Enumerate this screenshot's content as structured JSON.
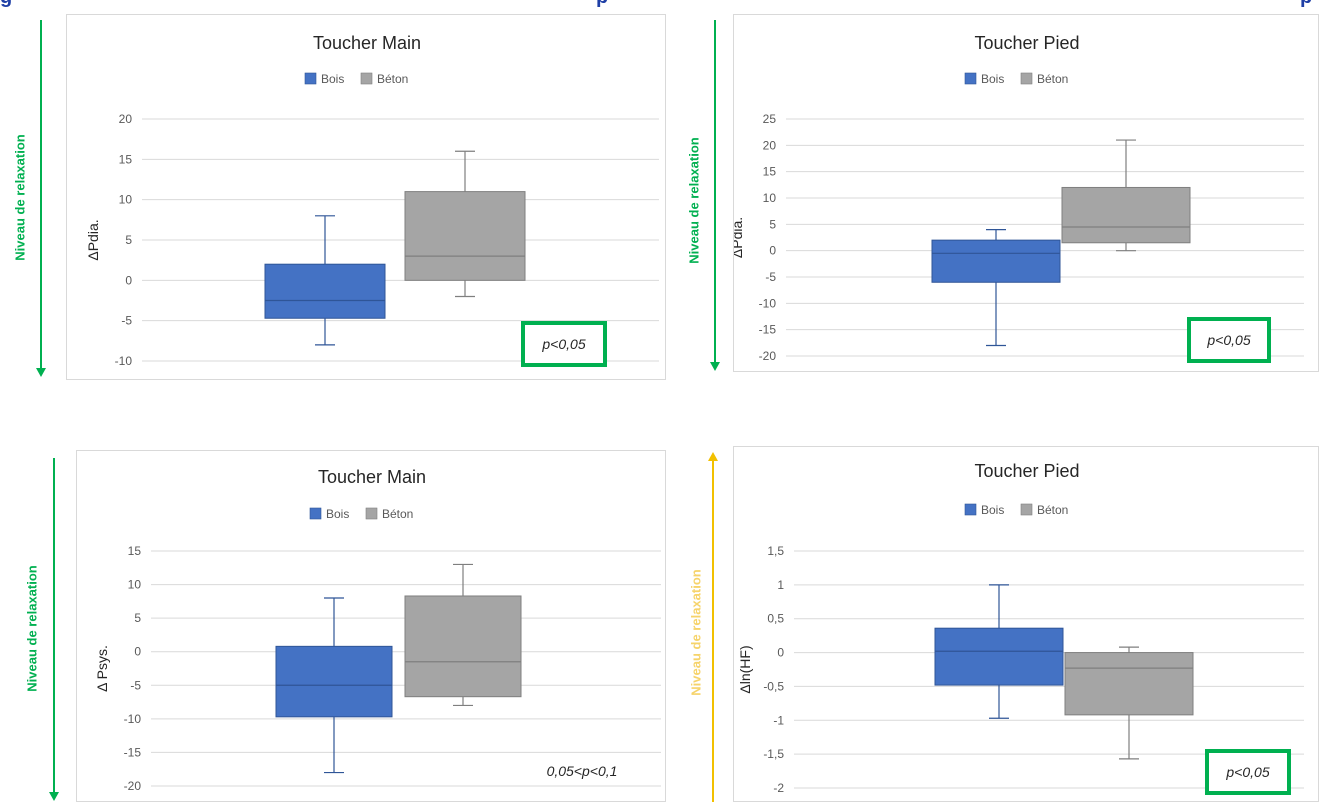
{
  "header_fragments": [
    "g",
    "p",
    "p"
  ],
  "relaxation_label": "Niveau de relaxation",
  "colors": {
    "bois": "#4472c4",
    "bois_edge": "#2f5597",
    "beton": "#a5a5a5",
    "beton_edge": "#7f7f7f",
    "grid": "#d9d9d9",
    "axis_text": "#595959",
    "pvalue_box": "#00b050",
    "arrow_green": "#00b050",
    "arrow_yellow": "#f2c000",
    "header_text": "#1f3fa6"
  },
  "chart_data": [
    {
      "type": "box",
      "title": "Toucher Main",
      "ylabel": "ΔPdia.",
      "ylim": [
        -10,
        20
      ],
      "yticks": [
        "20",
        "15",
        "10",
        "5",
        "0",
        "-5",
        "-10"
      ],
      "ytick_values": [
        20,
        15,
        10,
        5,
        0,
        -5,
        -10
      ],
      "legend": [
        "Bois",
        "Béton"
      ],
      "legend_position": "top-center",
      "grid": true,
      "relaxation_direction": "down",
      "series": [
        {
          "name": "Bois",
          "min": -8,
          "q1": -4.7,
          "median": -2.5,
          "q3": 2,
          "max": 8
        },
        {
          "name": "Béton",
          "min": -2,
          "q1": 0,
          "median": 3,
          "q3": 11,
          "max": 16
        }
      ],
      "annotation": "p<0,05",
      "annotation_boxed": true
    },
    {
      "type": "box",
      "title": "Toucher Pied",
      "ylabel": "ΔPdia.",
      "ylim": [
        -20,
        25
      ],
      "yticks": [
        "25",
        "20",
        "15",
        "10",
        "5",
        "0",
        "-5",
        "-10",
        "-15",
        "-20"
      ],
      "ytick_values": [
        25,
        20,
        15,
        10,
        5,
        0,
        -5,
        -10,
        -15,
        -20
      ],
      "legend": [
        "Bois",
        "Béton"
      ],
      "legend_position": "top-center",
      "grid": true,
      "relaxation_direction": "down",
      "series": [
        {
          "name": "Bois",
          "min": -18,
          "q1": -6,
          "median": -0.5,
          "q3": 2,
          "max": 4
        },
        {
          "name": "Béton",
          "min": 0,
          "q1": 1.5,
          "median": 4.5,
          "q3": 12,
          "max": 21
        }
      ],
      "annotation": "p<0,05",
      "annotation_boxed": true
    },
    {
      "type": "box",
      "title": "Toucher Main",
      "ylabel": "Δ Psys.",
      "ylim": [
        -20,
        15
      ],
      "yticks": [
        "15",
        "10",
        "5",
        "0",
        "-5",
        "-10",
        "-15",
        "-20"
      ],
      "ytick_values": [
        15,
        10,
        5,
        0,
        -5,
        -10,
        -15,
        -20
      ],
      "legend": [
        "Bois",
        "Béton"
      ],
      "legend_position": "top-center",
      "grid": true,
      "relaxation_direction": "down",
      "series": [
        {
          "name": "Bois",
          "min": -18,
          "q1": -9.7,
          "median": -5,
          "q3": 0.8,
          "max": 8
        },
        {
          "name": "Béton",
          "min": -8,
          "q1": -6.7,
          "median": -1.5,
          "q3": 8.3,
          "max": 13
        }
      ],
      "annotation": "0,05<p<0,1",
      "annotation_boxed": false
    },
    {
      "type": "box",
      "title": "Toucher Pied",
      "ylabel": "Δln(HF)",
      "ylim": [
        -2,
        1.5
      ],
      "yticks": [
        "1,5",
        "1",
        "0,5",
        "0",
        "-0,5",
        "-1",
        "-1,5",
        "-2"
      ],
      "ytick_values": [
        1.5,
        1,
        0.5,
        0,
        -0.5,
        -1,
        -1.5,
        -2
      ],
      "legend": [
        "Bois",
        "Béton"
      ],
      "legend_position": "top-center",
      "grid": true,
      "relaxation_direction": "up",
      "series": [
        {
          "name": "Bois",
          "min": -0.97,
          "q1": -0.48,
          "median": 0.02,
          "q3": 0.36,
          "max": 1
        },
        {
          "name": "Béton",
          "min": -1.57,
          "q1": -0.92,
          "median": -0.23,
          "q3": 0,
          "max": 0.08
        }
      ],
      "annotation": "p<0,05",
      "annotation_boxed": true
    }
  ]
}
